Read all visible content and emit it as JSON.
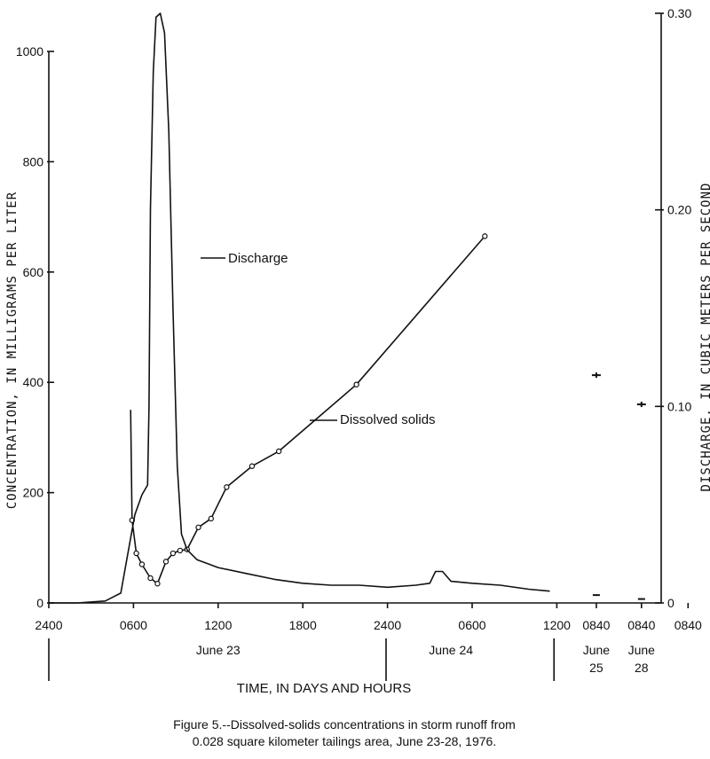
{
  "chart_data": {
    "type": "line",
    "title": "Figure 5.--Dissolved-solids concentrations in storm runoff from",
    "subtitle": "0.028 square kilometer tailings area, June 23-28, 1976.",
    "xlabel": "TIME, IN DAYS AND HOURS",
    "ylabel_left": "CONCENTRATION, IN MILLIGRAMS PER LITER",
    "ylabel_right": "DISCHARGE, IN CUBIC METERS PER SECOND",
    "x_unit": "hours since 2400 June 22",
    "ylim_left": [
      0,
      1000
    ],
    "ylim_right": [
      0,
      0.3
    ],
    "y_ticks_left": [
      "0",
      "200",
      "400",
      "600",
      "800",
      "1000"
    ],
    "y_ticks_right": [
      "0",
      "0.10",
      "0.20",
      "0.30"
    ],
    "x_ticks": [
      {
        "label": "2400",
        "x": 0
      },
      {
        "label": "0600",
        "x": 6
      },
      {
        "label": "1200",
        "x": 12
      },
      {
        "label": "1800",
        "x": 18
      },
      {
        "label": "2400",
        "x": 24
      },
      {
        "label": "0600",
        "x": 30
      },
      {
        "label": "1200",
        "x": 36
      },
      {
        "label": "0840",
        "x": 38.8
      },
      {
        "label": "0840",
        "x": 42
      },
      {
        "label": "0840",
        "x": 45.3
      }
    ],
    "day_labels": [
      {
        "text": "June 23",
        "x": 12
      },
      {
        "text": "June 24",
        "x": 28.5
      },
      {
        "text": "June",
        "sub": "25",
        "x": 38.8
      },
      {
        "text": "June",
        "sub": "28",
        "x": 42
      }
    ],
    "day_dividers": [
      0,
      23.9,
      35.8
    ],
    "series": [
      {
        "name": "Dissolved solids",
        "axis": "left",
        "points": [
          [
            5.8,
            350
          ],
          [
            5.9,
            150
          ],
          [
            6.2,
            90
          ],
          [
            6.6,
            70
          ],
          [
            7.2,
            45
          ],
          [
            7.7,
            35
          ],
          [
            8.3,
            75
          ],
          [
            8.8,
            90
          ],
          [
            9.3,
            95
          ],
          [
            9.8,
            97
          ],
          [
            10.6,
            137
          ],
          [
            11.5,
            153
          ],
          [
            12.6,
            210
          ],
          [
            14.4,
            248
          ],
          [
            16.3,
            275
          ],
          [
            21.8,
            396
          ],
          [
            30.9,
            665
          ]
        ],
        "extra_points": [
          [
            38.8,
            413
          ],
          [
            42,
            360
          ]
        ]
      },
      {
        "name": "Discharge",
        "axis": "right",
        "points": [
          [
            0,
            0.0
          ],
          [
            2,
            0.0
          ],
          [
            4,
            0.001
          ],
          [
            5.1,
            0.005
          ],
          [
            5.6,
            0.025
          ],
          [
            6.1,
            0.045
          ],
          [
            6.6,
            0.055
          ],
          [
            7.0,
            0.06
          ],
          [
            7.1,
            0.1
          ],
          [
            7.2,
            0.2
          ],
          [
            7.4,
            0.27
          ],
          [
            7.6,
            0.298
          ],
          [
            7.9,
            0.3
          ],
          [
            8.2,
            0.29
          ],
          [
            8.5,
            0.24
          ],
          [
            8.8,
            0.15
          ],
          [
            9.1,
            0.07
          ],
          [
            9.4,
            0.035
          ],
          [
            9.8,
            0.027
          ],
          [
            10.5,
            0.022
          ],
          [
            12,
            0.018
          ],
          [
            14,
            0.015
          ],
          [
            16,
            0.012
          ],
          [
            18,
            0.01
          ],
          [
            20,
            0.009
          ],
          [
            22,
            0.009
          ],
          [
            24,
            0.008
          ],
          [
            26,
            0.009
          ],
          [
            27,
            0.01
          ],
          [
            27.4,
            0.016
          ],
          [
            27.9,
            0.016
          ],
          [
            28.5,
            0.011
          ],
          [
            30,
            0.01
          ],
          [
            32,
            0.009
          ],
          [
            34,
            0.007
          ],
          [
            35.5,
            0.006
          ]
        ],
        "extra_points": [
          [
            38.8,
            0.004
          ],
          [
            42,
            0.002
          ]
        ]
      }
    ],
    "annotations": [
      {
        "text": "Discharge",
        "series": "Discharge"
      },
      {
        "text": "Dissolved solids",
        "series": "Dissolved solids"
      }
    ],
    "grid": false,
    "legend": "none"
  }
}
